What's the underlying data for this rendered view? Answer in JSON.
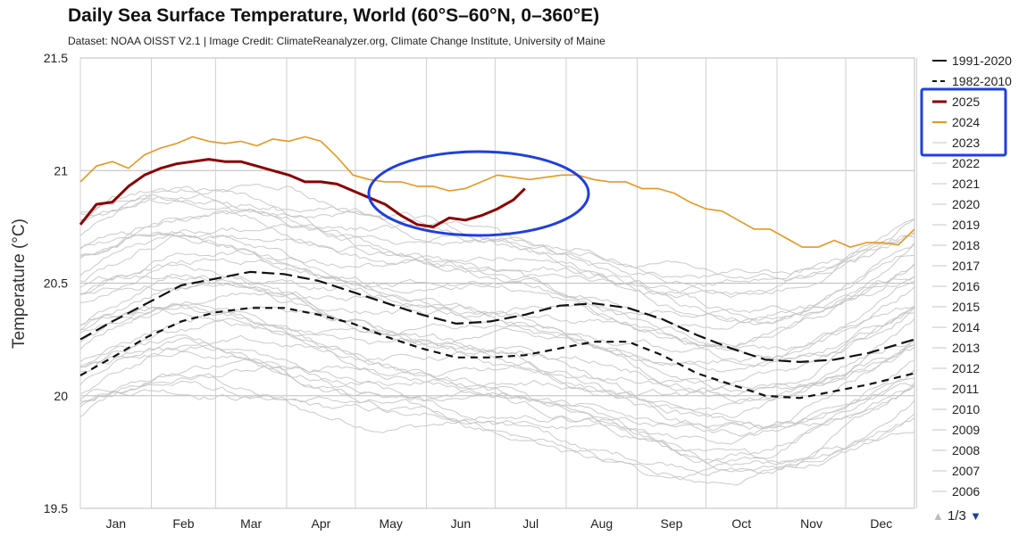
{
  "title": "Daily Sea Surface Temperature, World (60°S–60°N, 0–360°E)",
  "subtitle": "Dataset: NOAA OISST V2.1 | Image Credit: ClimateReanalyzer.org, Climate Change Institute, University of Maine",
  "pagination": {
    "up_icon": "triangle-up-icon",
    "label": "1/3",
    "down_icon": "triangle-down-icon"
  },
  "colors": {
    "c2025": "#8b0000",
    "c2024": "#e8961e",
    "mean": "#111111",
    "other_years": "#c4c4c4",
    "highlight": "#1f3fe0",
    "grid": "#bdbdbd"
  },
  "chart_data": {
    "type": "line",
    "title": "Daily Sea Surface Temperature, World (60°S–60°N, 0–360°E)",
    "ylabel": "Temperature (°C)",
    "xlabel": "",
    "ylim": [
      19.5,
      21.5
    ],
    "yticks": [
      "21.5",
      "21",
      "20.5",
      "20",
      "19.5"
    ],
    "months": [
      "Jan",
      "Feb",
      "Mar",
      "Apr",
      "May",
      "Jun",
      "Jul",
      "Aug",
      "Sep",
      "Oct",
      "Nov",
      "Dec"
    ],
    "x_unit": "day of year",
    "grid": true,
    "legend_placement": "right",
    "legend": [
      "1991-2020",
      "1982-2010",
      "2025",
      "2024",
      "2023",
      "2022",
      "2021",
      "2020",
      "2019",
      "2018",
      "2017",
      "2016",
      "2015",
      "2014",
      "2013",
      "2012",
      "2011",
      "2010",
      "2009",
      "2008",
      "2007",
      "2006"
    ],
    "series": [
      {
        "name": "2025",
        "x": [
          1,
          8,
          15,
          22,
          29,
          36,
          43,
          50,
          57,
          64,
          71,
          78,
          85,
          92,
          99,
          106,
          113,
          120,
          127,
          134,
          141,
          148,
          155,
          162,
          169,
          176,
          183,
          190,
          195
        ],
        "y": [
          20.76,
          20.85,
          20.86,
          20.93,
          20.98,
          21.01,
          21.03,
          21.04,
          21.05,
          21.04,
          21.04,
          21.02,
          21.0,
          20.98,
          20.95,
          20.95,
          20.94,
          20.91,
          20.88,
          20.85,
          20.8,
          20.76,
          20.75,
          20.79,
          20.78,
          20.8,
          20.83,
          20.87,
          20.92
        ]
      },
      {
        "name": "2024",
        "x": [
          1,
          8,
          15,
          22,
          29,
          36,
          43,
          50,
          57,
          64,
          71,
          78,
          85,
          92,
          99,
          106,
          113,
          120,
          127,
          134,
          141,
          148,
          155,
          162,
          169,
          176,
          183,
          190,
          197,
          204,
          211,
          218,
          225,
          232,
          239,
          246,
          253,
          260,
          267,
          274,
          281,
          288,
          295,
          302,
          309,
          316,
          323,
          330,
          337,
          344,
          351,
          358,
          365
        ],
        "y": [
          20.95,
          21.02,
          21.04,
          21.01,
          21.07,
          21.1,
          21.12,
          21.15,
          21.13,
          21.12,
          21.13,
          21.11,
          21.14,
          21.13,
          21.15,
          21.13,
          21.06,
          20.98,
          20.96,
          20.95,
          20.95,
          20.93,
          20.93,
          20.91,
          20.92,
          20.95,
          20.98,
          20.97,
          20.96,
          20.97,
          20.98,
          20.98,
          20.96,
          20.95,
          20.95,
          20.92,
          20.92,
          20.9,
          20.86,
          20.83,
          20.82,
          20.78,
          20.74,
          20.74,
          20.7,
          20.66,
          20.66,
          20.69,
          20.66,
          20.68,
          20.68,
          20.67,
          20.74
        ]
      },
      {
        "name": "1991-2020",
        "x": [
          1,
          15,
          30,
          45,
          60,
          75,
          90,
          105,
          120,
          135,
          150,
          165,
          180,
          195,
          210,
          225,
          240,
          255,
          270,
          285,
          300,
          315,
          330,
          345,
          365
        ],
        "y": [
          20.25,
          20.33,
          20.41,
          20.49,
          20.52,
          20.55,
          20.54,
          20.51,
          20.46,
          20.41,
          20.36,
          20.32,
          20.33,
          20.36,
          20.4,
          20.41,
          20.39,
          20.34,
          20.27,
          20.21,
          20.16,
          20.15,
          20.16,
          20.19,
          20.25
        ]
      },
      {
        "name": "1982-2010",
        "x": [
          1,
          15,
          30,
          45,
          60,
          75,
          90,
          105,
          120,
          135,
          150,
          165,
          180,
          195,
          210,
          225,
          240,
          255,
          270,
          285,
          300,
          315,
          330,
          345,
          365
        ],
        "y": [
          20.09,
          20.17,
          20.26,
          20.33,
          20.37,
          20.39,
          20.39,
          20.36,
          20.32,
          20.26,
          20.21,
          20.17,
          20.17,
          20.18,
          20.21,
          20.24,
          20.24,
          20.18,
          20.1,
          20.05,
          20.0,
          19.99,
          20.02,
          20.05,
          20.1
        ]
      }
    ]
  }
}
